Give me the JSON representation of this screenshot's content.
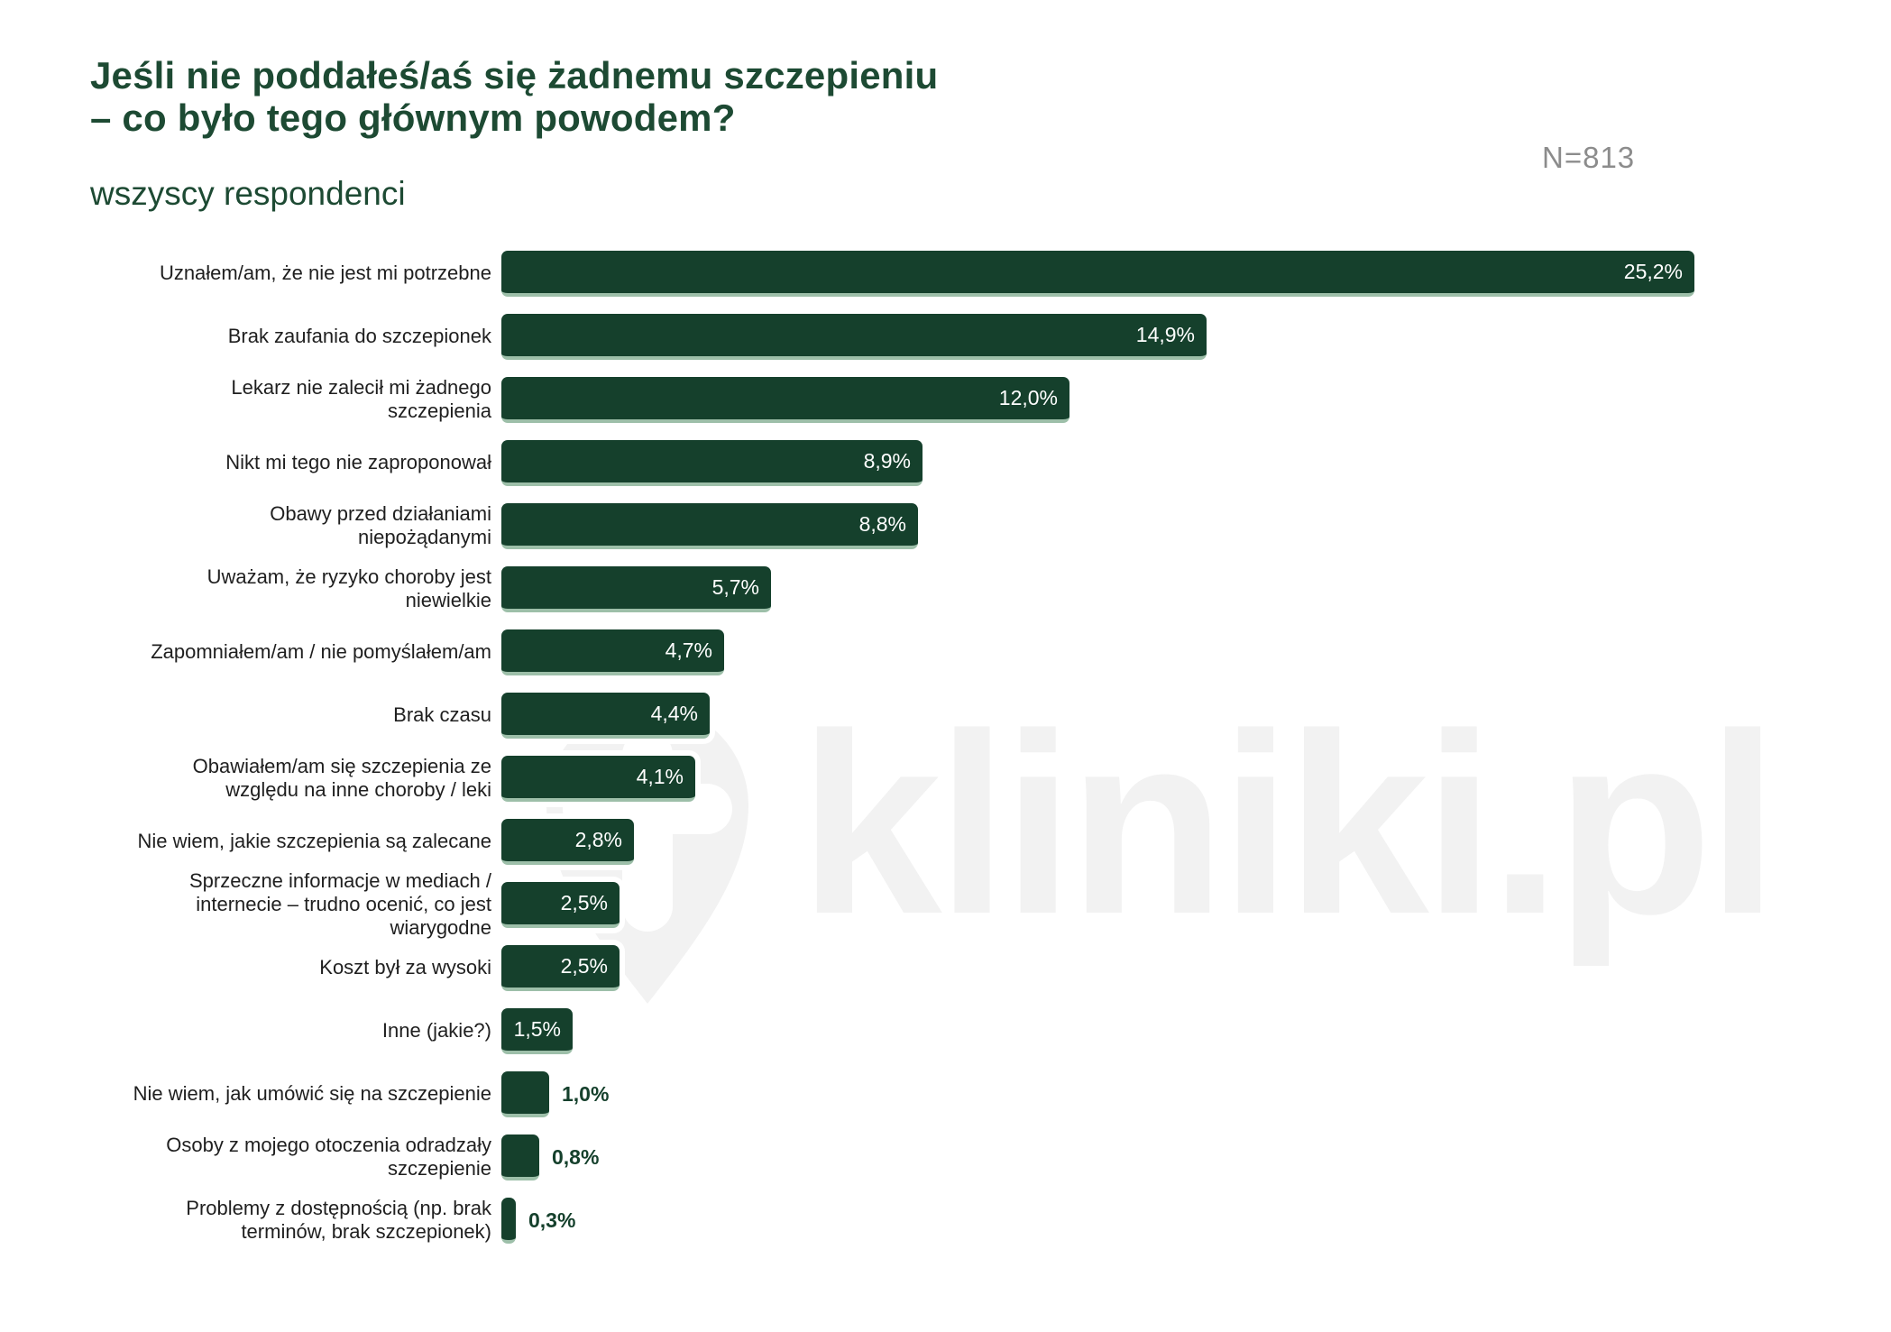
{
  "header": {
    "title_line1": "Jeśli nie poddałeś/aś się żadnemu szczepieniu",
    "title_line2": "– co było tego głównym powodem?",
    "subtitle": "wszyscy respondenci",
    "sample_size": "N=813"
  },
  "watermark": {
    "text": "kliniki.pl",
    "icon": "location-pin-cross-icon"
  },
  "colors": {
    "bar": "#15402C",
    "bar_bottom_edge": "#9DBFA9",
    "title": "#1D4A33",
    "category_label": "#1F1F1F",
    "value_inside": "#FFFFFF",
    "sample_size": "#8C8C8C",
    "watermark": "#F2F2F2",
    "background": "#FFFFFF"
  },
  "chart_data": {
    "type": "bar",
    "orientation": "horizontal",
    "title": "Jeśli nie poddałeś/aś się żadnemu szczepieniu – co było tego głównym powodem?",
    "subtitle": "wszyscy respondenci",
    "sample_label": "N=813",
    "unit": "%",
    "xlim": [
      0,
      26
    ],
    "grid": false,
    "legend": false,
    "categories": [
      "Uznałem/am, że nie jest mi potrzebne",
      "Brak zaufania do szczepionek",
      "Lekarz nie zalecił mi żadnego szczepienia",
      "Nikt mi tego nie zaproponował",
      "Obawy przed działaniami niepożądanymi",
      "Uważam, że ryzyko choroby jest niewielkie",
      "Zapomniałem/am / nie pomyślałem/am",
      "Brak czasu",
      "Obawiałem/am się szczepienia ze względu na inne choroby / leki",
      "Nie wiem, jakie szczepienia są zalecane",
      "Sprzeczne informacje w mediach / internecie – trudno ocenić, co jest wiarygodne",
      "Koszt był za wysoki",
      "Inne (jakie?)",
      "Nie wiem, jak umówić się na szczepienie",
      "Osoby z mojego otoczenia odradzały szczepienie",
      "Problemy z dostępnością (np. brak terminów, brak szczepionek)"
    ],
    "category_lines": [
      [
        "Uznałem/am, że nie jest mi potrzebne"
      ],
      [
        "Brak zaufania do szczepionek"
      ],
      [
        "Lekarz nie zalecił mi żadnego",
        "szczepienia"
      ],
      [
        "Nikt mi tego nie zaproponował"
      ],
      [
        "Obawy przed działaniami",
        "niepożądanymi"
      ],
      [
        "Uważam, że ryzyko choroby jest",
        "niewielkie"
      ],
      [
        "Zapomniałem/am / nie pomyślałem/am"
      ],
      [
        "Brak czasu"
      ],
      [
        "Obawiałem/am się szczepienia ze",
        "względu na inne choroby / leki"
      ],
      [
        "Nie wiem, jakie szczepienia są zalecane"
      ],
      [
        "Sprzeczne informacje w mediach /",
        "internecie – trudno ocenić, co jest",
        "wiarygodne"
      ],
      [
        "Koszt był za wysoki"
      ],
      [
        "Inne (jakie?)"
      ],
      [
        "Nie wiem, jak umówić się na szczepienie"
      ],
      [
        "Osoby z mojego otoczenia odradzały",
        "szczepienie"
      ],
      [
        "Problemy z dostępnością (np. brak",
        "terminów, brak szczepionek)"
      ]
    ],
    "values": [
      25.2,
      14.9,
      12.0,
      8.9,
      8.8,
      5.7,
      4.7,
      4.4,
      4.1,
      2.8,
      2.5,
      2.5,
      1.5,
      1.0,
      0.8,
      0.3
    ],
    "value_labels": [
      "25,2%",
      "14,9%",
      "12,0%",
      "8,9%",
      "8,8%",
      "5,7%",
      "4,7%",
      "4,4%",
      "4,1%",
      "2,8%",
      "2,5%",
      "2,5%",
      "1,5%",
      "1,0%",
      "0,8%",
      "0,3%"
    ]
  }
}
